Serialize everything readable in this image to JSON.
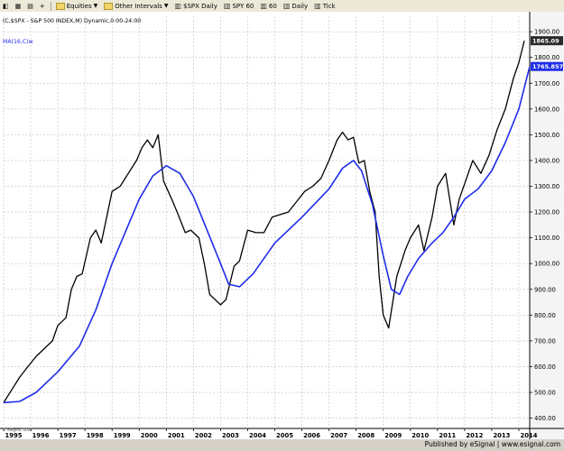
{
  "toolbar": {
    "items": [
      {
        "label": "Equities",
        "icon": "folder-icon",
        "dropdown": true
      },
      {
        "label": "Other Intervals",
        "icon": "folder-icon",
        "dropdown": true
      },
      {
        "label": "$SPX Daily",
        "icon": "chart-icon"
      },
      {
        "label": "SPY 60",
        "icon": "chart-icon"
      },
      {
        "label": "60",
        "icon": "chart-icon"
      },
      {
        "label": "Daily",
        "icon": "chart-icon"
      },
      {
        "label": "Tick",
        "icon": "chart-icon"
      }
    ]
  },
  "chart_data": {
    "type": "line",
    "header": "(C,$SPX - S&P 500 INDEX,M) Dynamic,0:00-24:00",
    "ma_label": "MA(16,C)w",
    "colors": {
      "price": "#000000",
      "ma": "#1f2de8",
      "price_tag_bg": "#2a2a2a",
      "ma_tag_bg": "#1f2de8",
      "grid": "#c0c0c0"
    },
    "grid": true,
    "ylim": [
      360,
      1960
    ],
    "xlim": [
      1995.0,
      2014.4
    ],
    "y_ticks": [
      400,
      500,
      600,
      700,
      800,
      900,
      1000,
      1100,
      1200,
      1300,
      1400,
      1500,
      1600,
      1700,
      1800,
      1900
    ],
    "x_ticks": [
      "1995",
      "1996",
      "1997",
      "1998",
      "1999",
      "2000",
      "2001",
      "2002",
      "2003",
      "2004",
      "2005",
      "2006",
      "2007",
      "2008",
      "2009",
      "2010",
      "2011",
      "2012",
      "2013",
      "2014"
    ],
    "last_price_label": "1865.09",
    "last_price": 1865,
    "last_ma_label": "1765.85779",
    "last_ma": 1765,
    "series": [
      {
        "name": "S&P 500 Index",
        "x": [
          1995.0,
          1995.3,
          1995.6,
          1995.9,
          1996.2,
          1996.5,
          1996.8,
          1997.0,
          1997.3,
          1997.5,
          1997.7,
          1997.9,
          1998.2,
          1998.4,
          1998.6,
          1998.8,
          1999.0,
          1999.3,
          1999.6,
          1999.9,
          2000.1,
          2000.3,
          2000.5,
          2000.7,
          2000.9,
          2001.2,
          2001.4,
          2001.7,
          2001.9,
          2002.2,
          2002.4,
          2002.6,
          2002.8,
          2003.0,
          2003.2,
          2003.5,
          2003.7,
          2004.0,
          2004.3,
          2004.6,
          2004.9,
          2005.2,
          2005.5,
          2005.8,
          2006.1,
          2006.4,
          2006.7,
          2007.0,
          2007.3,
          2007.5,
          2007.7,
          2007.9,
          2008.1,
          2008.3,
          2008.5,
          2008.7,
          2008.85,
          2009.0,
          2009.2,
          2009.5,
          2009.8,
          2010.0,
          2010.3,
          2010.5,
          2010.8,
          2011.0,
          2011.3,
          2011.6,
          2011.8,
          2012.0,
          2012.3,
          2012.6,
          2012.9,
          2013.2,
          2013.5,
          2013.8,
          2014.0,
          2014.2
        ],
        "y": [
          460,
          510,
          560,
          600,
          640,
          670,
          700,
          760,
          790,
          900,
          950,
          960,
          1100,
          1130,
          1080,
          1180,
          1280,
          1300,
          1350,
          1400,
          1450,
          1480,
          1450,
          1500,
          1320,
          1250,
          1200,
          1120,
          1130,
          1100,
          1000,
          880,
          860,
          840,
          860,
          990,
          1010,
          1130,
          1120,
          1120,
          1180,
          1190,
          1200,
          1240,
          1280,
          1300,
          1330,
          1400,
          1480,
          1510,
          1480,
          1490,
          1390,
          1400,
          1280,
          1200,
          950,
          800,
          750,
          950,
          1050,
          1100,
          1150,
          1050,
          1180,
          1300,
          1350,
          1150,
          1250,
          1310,
          1400,
          1350,
          1420,
          1520,
          1600,
          1720,
          1780,
          1865
        ]
      },
      {
        "name": "MA(16,C)w",
        "x": [
          1995.0,
          1995.6,
          1996.2,
          1997.0,
          1997.8,
          1998.4,
          1999.0,
          1999.6,
          2000.0,
          2000.5,
          2001.0,
          2001.5,
          2002.0,
          2002.5,
          2003.0,
          2003.3,
          2003.7,
          2004.2,
          2005.0,
          2006.0,
          2007.0,
          2007.5,
          2007.9,
          2008.2,
          2008.6,
          2009.0,
          2009.3,
          2009.6,
          2009.9,
          2010.3,
          2010.8,
          2011.2,
          2011.6,
          2012.0,
          2012.5,
          2013.0,
          2013.5,
          2014.0,
          2014.4
        ],
        "y": [
          460,
          465,
          500,
          580,
          680,
          820,
          1000,
          1150,
          1250,
          1340,
          1380,
          1350,
          1260,
          1130,
          1000,
          920,
          910,
          960,
          1080,
          1180,
          1290,
          1370,
          1400,
          1360,
          1230,
          1030,
          900,
          880,
          950,
          1020,
          1080,
          1120,
          1180,
          1250,
          1290,
          1360,
          1470,
          1600,
          1765
        ]
      }
    ]
  },
  "footer": {
    "publisher": "Published by eSignal | www.esignal.com",
    "copyright": "© eSignal, 2014"
  }
}
